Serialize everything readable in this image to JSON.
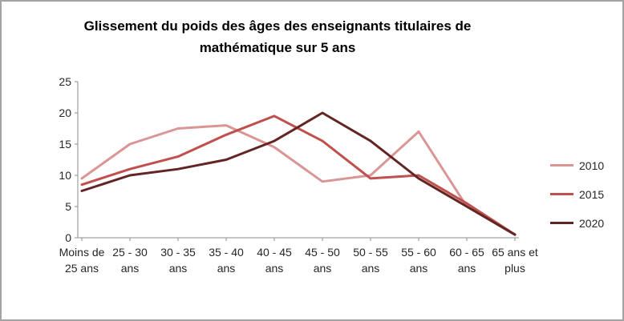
{
  "chart_data": {
    "type": "line",
    "title": "Glissement du poids des âges des enseignants titulaires de mathématique sur 5 ans",
    "categories": [
      "Moins de 25 ans",
      "25 - 30 ans",
      "30 - 35 ans",
      "35 - 40 ans",
      "40 - 45 ans",
      "45 - 50 ans",
      "50 - 55 ans",
      "55 - 60 ans",
      "60 - 65 ans",
      "65 ans et plus"
    ],
    "series": [
      {
        "name": "2010",
        "color": "#d99694",
        "values": [
          9.5,
          15,
          17.5,
          18,
          14.5,
          9,
          10,
          17,
          5,
          0.5
        ]
      },
      {
        "name": "2015",
        "color": "#c0504d",
        "values": [
          8.5,
          11,
          13,
          16.5,
          19.5,
          15.5,
          9.5,
          10,
          5.5,
          0.5
        ]
      },
      {
        "name": "2020",
        "color": "#632523",
        "values": [
          7.5,
          10,
          11,
          12.5,
          15.5,
          20,
          15.5,
          9.5,
          5,
          0.5
        ]
      }
    ],
    "y_ticks": [
      0,
      5,
      10,
      15,
      20,
      25
    ],
    "ylim": [
      0,
      25
    ],
    "xlabel": "",
    "ylabel": "",
    "grid": false,
    "legend_position": "right",
    "axis_color": "#8c8c8c"
  }
}
